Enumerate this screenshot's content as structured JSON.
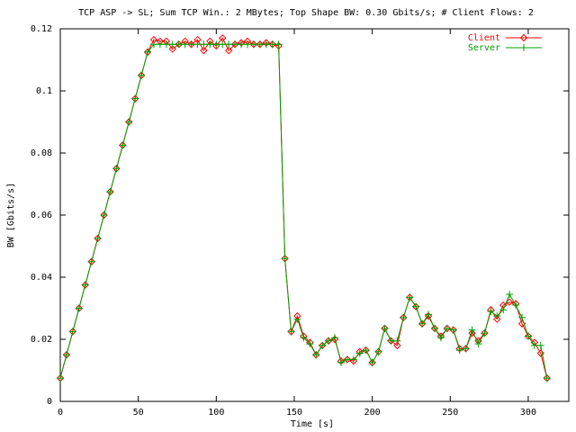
{
  "chart_data": {
    "type": "line",
    "title": "TCP ASP -> SL; Sum TCP Win.: 2 MBytes; Top Shape BW: 0.30 Gbits/s; # Client Flows: 2",
    "x_label": "Time [s]",
    "y_label": "BW [Gbits/s]",
    "x": [
      0,
      4,
      8,
      12,
      16,
      20,
      24,
      28,
      32,
      36,
      40,
      44,
      48,
      52,
      56,
      60,
      64,
      68,
      72,
      76,
      80,
      84,
      88,
      92,
      96,
      100,
      104,
      108,
      112,
      116,
      120,
      124,
      128,
      132,
      136,
      140,
      144,
      148,
      152,
      156,
      160,
      164,
      168,
      172,
      176,
      180,
      184,
      188,
      192,
      196,
      200,
      204,
      208,
      212,
      216,
      220,
      224,
      228,
      232,
      236,
      240,
      244,
      248,
      252,
      256,
      260,
      264,
      268,
      272,
      276,
      280,
      284,
      288,
      292,
      296,
      300,
      304,
      308,
      312
    ],
    "series": [
      {
        "name": "Client",
        "color": "#ff0000",
        "marker": "diamond",
        "values": [
          0.0075,
          0.015,
          0.0225,
          0.03,
          0.0375,
          0.045,
          0.0525,
          0.06,
          0.0675,
          0.075,
          0.0825,
          0.09,
          0.0975,
          0.105,
          0.1125,
          0.1165,
          0.116,
          0.116,
          0.1135,
          0.115,
          0.116,
          0.115,
          0.1165,
          0.113,
          0.116,
          0.1145,
          0.117,
          0.113,
          0.115,
          0.1155,
          0.116,
          0.115,
          0.115,
          0.1155,
          0.115,
          0.1145,
          0.046,
          0.0225,
          0.0275,
          0.021,
          0.019,
          0.015,
          0.018,
          0.0195,
          0.02,
          0.013,
          0.0135,
          0.013,
          0.016,
          0.0165,
          0.0125,
          0.016,
          0.0235,
          0.0195,
          0.018,
          0.027,
          0.0335,
          0.0305,
          0.025,
          0.0275,
          0.0235,
          0.021,
          0.0235,
          0.023,
          0.017,
          0.017,
          0.022,
          0.0195,
          0.022,
          0.0295,
          0.0265,
          0.031,
          0.032,
          0.0315,
          0.025,
          0.021,
          0.019,
          0.0155,
          0.0075
        ]
      },
      {
        "name": "Server",
        "color": "#00a000",
        "marker": "plus",
        "values": [
          0.0075,
          0.015,
          0.0225,
          0.03,
          0.0375,
          0.045,
          0.0525,
          0.06,
          0.0675,
          0.075,
          0.0825,
          0.09,
          0.0975,
          0.105,
          0.1125,
          0.115,
          0.115,
          0.115,
          0.115,
          0.115,
          0.115,
          0.115,
          0.115,
          0.115,
          0.115,
          0.115,
          0.115,
          0.115,
          0.115,
          0.115,
          0.115,
          0.115,
          0.115,
          0.115,
          0.115,
          0.115,
          0.046,
          0.0225,
          0.0265,
          0.0205,
          0.0185,
          0.015,
          0.018,
          0.0195,
          0.0205,
          0.0125,
          0.0135,
          0.0135,
          0.0155,
          0.0165,
          0.0125,
          0.016,
          0.0235,
          0.0195,
          0.0195,
          0.027,
          0.0335,
          0.0305,
          0.025,
          0.028,
          0.0235,
          0.0205,
          0.0235,
          0.023,
          0.0165,
          0.017,
          0.023,
          0.0185,
          0.022,
          0.029,
          0.0275,
          0.0295,
          0.0345,
          0.031,
          0.027,
          0.021,
          0.018,
          0.018,
          0.0075
        ]
      }
    ],
    "xlim": [
      0,
      326
    ],
    "xticks": [
      0,
      50,
      100,
      150,
      200,
      250,
      300
    ],
    "ylim": [
      0,
      0.12
    ],
    "yticks": [
      0,
      0.02,
      0.04,
      0.06,
      0.08,
      0.1,
      0.12
    ],
    "legend": "top-right"
  }
}
